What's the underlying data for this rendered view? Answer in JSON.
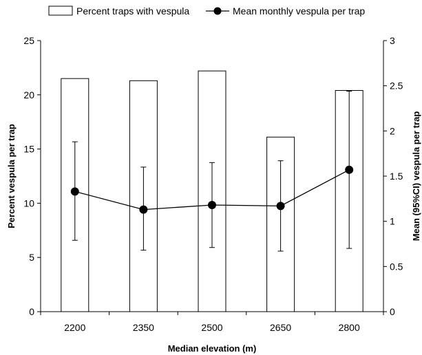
{
  "chart_data": {
    "type": "bar+line",
    "categories": [
      "2200",
      "2350",
      "2500",
      "2650",
      "2800"
    ],
    "xlabel": "Median elevation (m)",
    "ylabel": "Percent vespula per trap",
    "ylabel_right": "Mean (95%CI) vespula per trap",
    "ylim": [
      0,
      25
    ],
    "yticks": [
      "0",
      "5",
      "10",
      "15",
      "20",
      "25"
    ],
    "ylim_right": [
      0,
      3
    ],
    "yticks_right": [
      "0",
      "0.5",
      "1",
      "1.5",
      "2",
      "2.5",
      "3"
    ],
    "grid": false,
    "legend_position": "top",
    "series": [
      {
        "name": "Percent traps with vespula",
        "type": "bar",
        "axis": "left",
        "values": [
          21.5,
          21.3,
          22.2,
          16.1,
          20.4
        ]
      },
      {
        "name": "Mean monthly vespula per trap",
        "type": "line",
        "axis": "right",
        "values": [
          1.33,
          1.13,
          1.18,
          1.17,
          1.57
        ],
        "ci_low": [
          0.79,
          0.68,
          0.71,
          0.67,
          0.7
        ],
        "ci_high": [
          1.88,
          1.6,
          1.65,
          1.67,
          2.44
        ]
      }
    ]
  }
}
